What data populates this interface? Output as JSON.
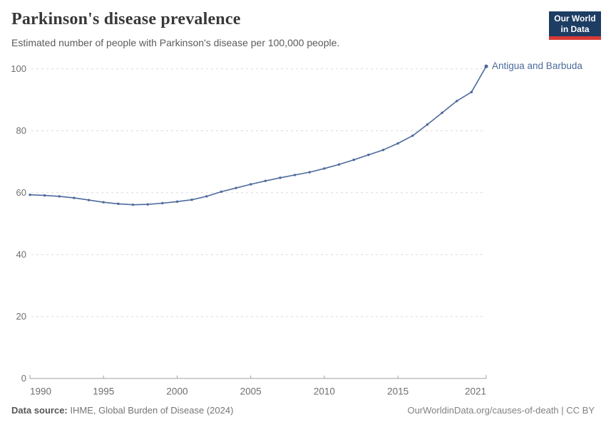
{
  "header": {
    "title": "Parkinson's disease prevalence",
    "subtitle": "Estimated number of people with Parkinson's disease per 100,000 people.",
    "logo": {
      "line1": "Our World",
      "line2": "in Data",
      "bg_color": "#1d3d63",
      "accent_color": "#d93a34"
    }
  },
  "chart_data": {
    "type": "line",
    "title": "Parkinson's disease prevalence",
    "subtitle": "Estimated number of people with Parkinson's disease per 100,000 people.",
    "x": [
      1990,
      1991,
      1992,
      1993,
      1994,
      1995,
      1996,
      1997,
      1998,
      1999,
      2000,
      2001,
      2002,
      2003,
      2004,
      2005,
      2006,
      2007,
      2008,
      2009,
      2010,
      2011,
      2012,
      2013,
      2014,
      2015,
      2016,
      2017,
      2018,
      2019,
      2020,
      2021
    ],
    "series": [
      {
        "name": "Antigua and Barbuda",
        "color": "#4c6a9c",
        "values": [
          59.3,
          59.1,
          58.8,
          58.3,
          57.6,
          56.9,
          56.4,
          56.1,
          56.2,
          56.6,
          57.1,
          57.7,
          58.8,
          60.3,
          61.5,
          62.7,
          63.8,
          64.8,
          65.7,
          66.6,
          67.8,
          69.1,
          70.6,
          72.2,
          73.8,
          75.9,
          78.4,
          82.0,
          85.8,
          89.6,
          92.5,
          100.8
        ]
      }
    ],
    "xlabel": "",
    "ylabel": "",
    "xlim": [
      1990,
      2021
    ],
    "ylim": [
      0,
      100
    ],
    "x_ticks": [
      1990,
      1995,
      2000,
      2005,
      2010,
      2015,
      2021
    ],
    "y_ticks": [
      0,
      20,
      40,
      60,
      80,
      100
    ],
    "grid": "horizontal-dashed",
    "legend_position": "end-of-line-label",
    "marker": "dot",
    "axis_color": "#a0a0a0",
    "grid_color": "#dcdcdc",
    "tick_label_color": "#6e6e6e"
  },
  "footer": {
    "datasource_label": "Data source:",
    "datasource_value": "IHME, Global Burden of Disease (2024)",
    "attribution": "OurWorldinData.org/causes-of-death | CC BY"
  }
}
